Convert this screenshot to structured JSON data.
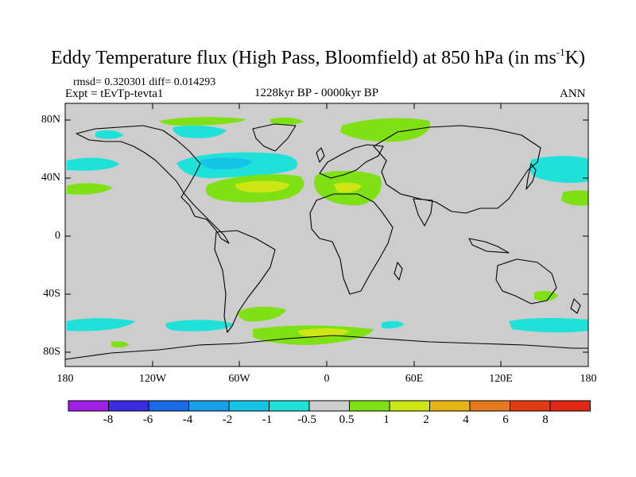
{
  "title": {
    "main": "Eddy Temperature flux (High Pass, Bloomfield) at 850 hPa (in ms",
    "sup": "-1",
    "end": "K)"
  },
  "stats": "rmsd= 0.320301 diff= 0.014293",
  "experiment": "Expt = tEvTp-tevta1",
  "period": "1228kyr BP - 0000kyr BP",
  "season": "ANN",
  "y_ticks": [
    "80N",
    "40N",
    "0",
    "40S",
    "80S"
  ],
  "x_ticks": [
    "180",
    "120W",
    "60W",
    "0",
    "60E",
    "120E",
    "180"
  ],
  "colorbar": {
    "labels": [
      "-8",
      "-6",
      "-4",
      "-2",
      "-1",
      "-0.5",
      "0.5",
      "1",
      "2",
      "4",
      "6",
      "8"
    ],
    "colors": [
      "#9f1fe8",
      "#3c2ce0",
      "#1a6ae6",
      "#1aa0e6",
      "#14c4e6",
      "#1ee2da",
      "#cdcdcd",
      "#7fe014",
      "#cde614",
      "#e6b414",
      "#e6781e",
      "#e03c14",
      "#e02814"
    ]
  },
  "palette": {
    "neutral": "#cdcdcd",
    "pos_low": "#7fe014",
    "pos_mid": "#cde614",
    "neg_low": "#1ee2da",
    "neg_mid": "#14c4e6"
  }
}
